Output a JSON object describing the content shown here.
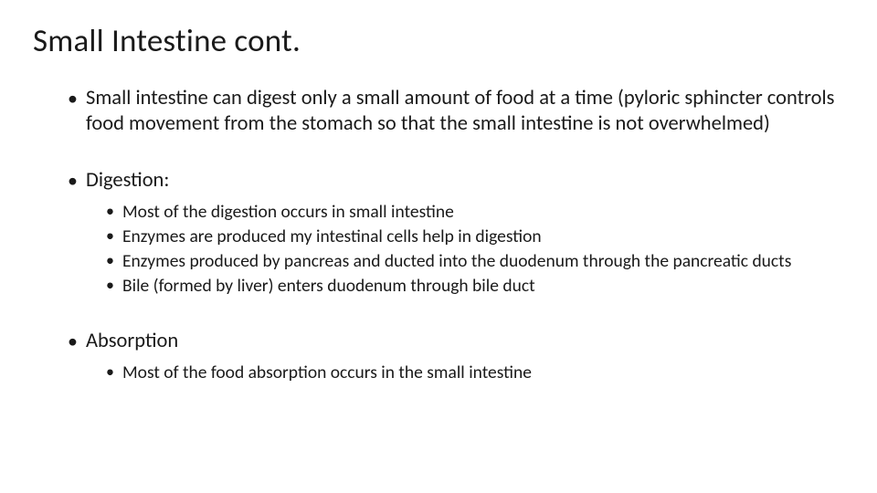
{
  "slide": {
    "title": "Small Intestine cont.",
    "bullets": {
      "b1": "Small intestine can digest only a small amount of food at a time (pyloric sphincter controls food movement from the stomach so that the small intestine is not overwhelmed)",
      "b2": "Digestion:",
      "b2_sub": {
        "s1": "Most of the digestion occurs in small intestine",
        "s2": "Enzymes are produced my intestinal cells help in digestion",
        "s3": "Enzymes produced by pancreas and ducted into the duodenum through the pancreatic ducts",
        "s4": "Bile (formed by liver) enters duodenum through bile duct"
      },
      "b3": "Absorption",
      "b3_sub": {
        "s1": "Most of the food absorption occurs in the small intestine"
      }
    }
  },
  "styling": {
    "background_color": "#ffffff",
    "text_color": "#1a1a1a",
    "title_fontsize": 35,
    "level1_fontsize": 22.5,
    "level2_fontsize": 19.5,
    "font_family": "Calibri"
  }
}
